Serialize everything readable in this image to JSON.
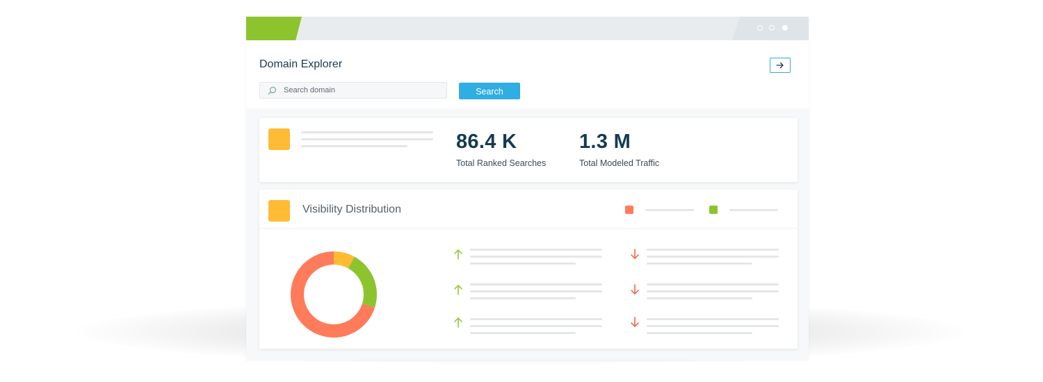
{
  "window": {
    "brand_color": "#8dc42e",
    "window_controls": [
      "outline-dot",
      "outline-dot",
      "filled-dot"
    ]
  },
  "header": {
    "title": "Domain Explorer",
    "exit_icon": "arrow-right-icon",
    "search": {
      "icon": "search-icon",
      "placeholder": "Search domain",
      "value": "",
      "button_label": "Search",
      "button_color": "#30ade2"
    }
  },
  "stats_card": {
    "icon_color": "#ffbb33",
    "metrics": [
      {
        "value": "86.4 K",
        "label": "Total Ranked Searches"
      },
      {
        "value": "1.3 M",
        "label": "Total Modeled Traffic"
      }
    ]
  },
  "visibility_card": {
    "title": "Visibility Distribution",
    "icon_color": "#ffbb33",
    "legend": [
      {
        "color": "#ff7b5a"
      },
      {
        "color": "#8dc42e"
      }
    ],
    "donut": {
      "segments": [
        {
          "value": 8,
          "color": "#ffbb33"
        },
        {
          "value": 22,
          "color": "#8dc42e"
        },
        {
          "value": 70,
          "color": "#ff7b5a"
        }
      ]
    },
    "trend_columns": [
      {
        "direction": "up",
        "icon": "arrow-up-icon",
        "color": "#8dc42e",
        "rows": 3
      },
      {
        "direction": "down",
        "icon": "arrow-down-icon",
        "color": "#f05a3c",
        "rows": 3
      }
    ]
  }
}
